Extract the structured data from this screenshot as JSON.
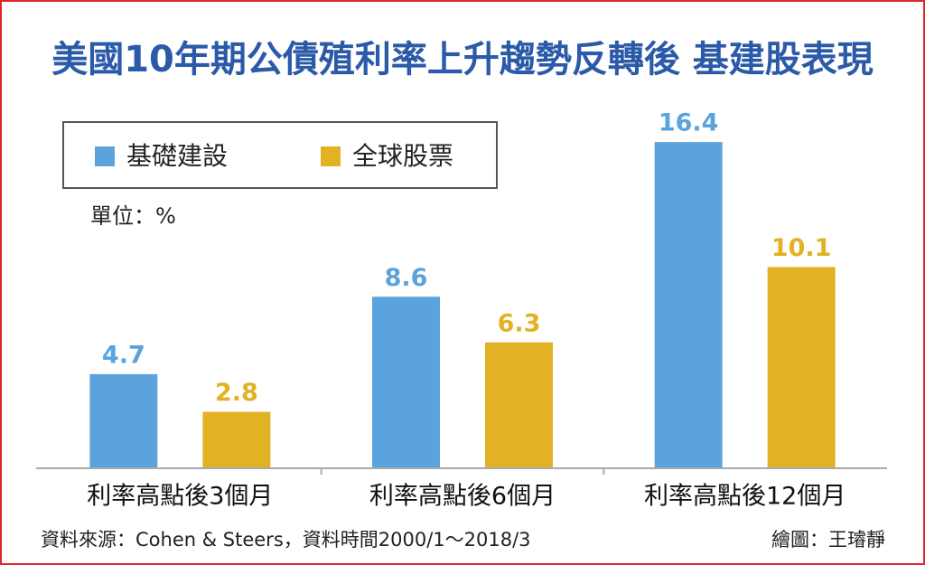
{
  "chart_data": {
    "type": "bar",
    "title": "美國10年期公債殖利率上升趨勢反轉後  基建股表現",
    "unit": "單位：%",
    "source": "資料來源：Cohen & Steers，資料時間2000/1～2018/3",
    "credit": "繪圖：王璿靜",
    "categories": [
      "利率高點後3個月",
      "利率高點後6個月",
      "利率高點後12個月"
    ],
    "series": [
      {
        "name": "基礎建設",
        "color": "#5ba3dc",
        "values": [
          4.7,
          8.6,
          16.4
        ]
      },
      {
        "name": "全球股票",
        "color": "#e2b124",
        "values": [
          2.8,
          6.3,
          10.1
        ]
      }
    ],
    "ylim": [
      0,
      18
    ]
  }
}
